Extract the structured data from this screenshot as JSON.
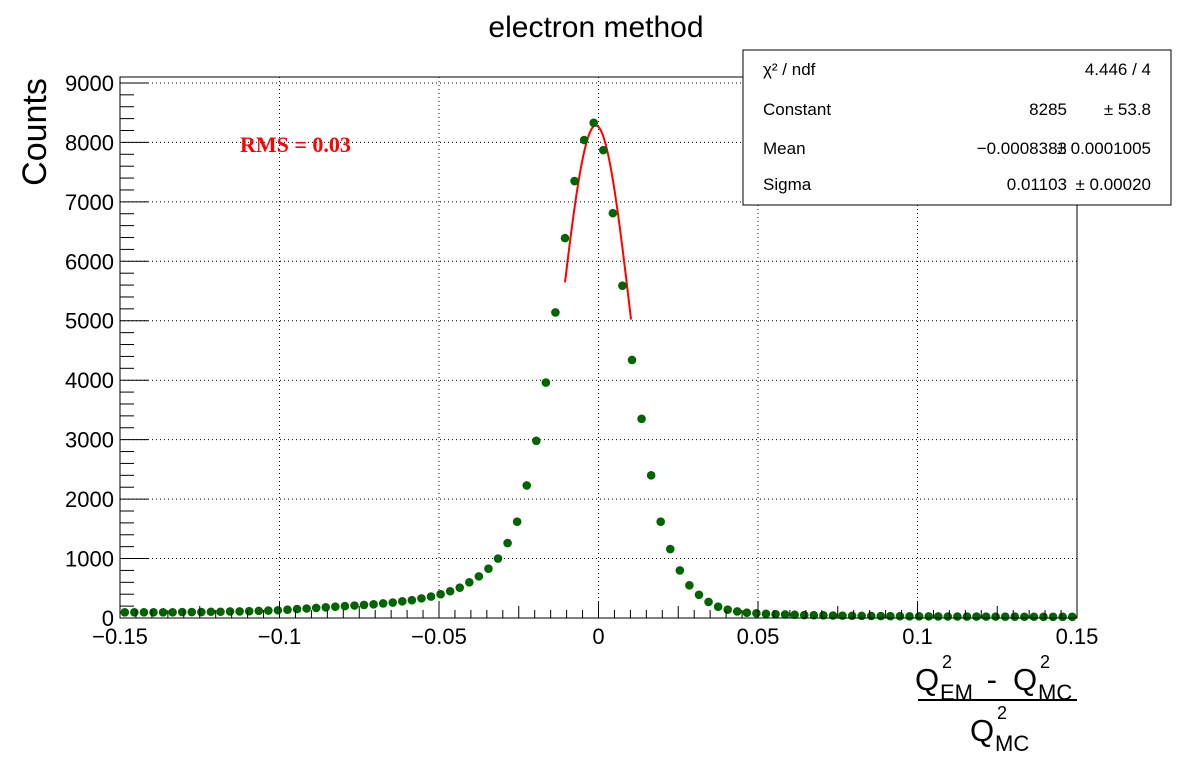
{
  "chart_data": {
    "type": "scatter",
    "title": "electron method",
    "ylabel": "Counts",
    "xlabel": {
      "numerator": {
        "a": "Q",
        "a_sup": "2",
        "a_sub": "EM",
        "op": " - ",
        "b": "Q",
        "b_sup": "2",
        "b_sub": "MC"
      },
      "denominator": {
        "a": "Q",
        "a_sup": "2",
        "a_sub": "MC"
      }
    },
    "xlim": [
      -0.15,
      0.15
    ],
    "ylim": [
      0,
      9100
    ],
    "x_ticks": [
      "−0.15",
      "−0.1",
      "−0.05",
      "0",
      "0.05",
      "0.1",
      "0.15"
    ],
    "x_tick_values": [
      -0.15,
      -0.1,
      -0.05,
      0,
      0.05,
      0.1,
      0.15
    ],
    "y_ticks": [
      "0",
      "1000",
      "2000",
      "3000",
      "4000",
      "5000",
      "6000",
      "7000",
      "8000",
      "9000"
    ],
    "y_tick_values": [
      0,
      1000,
      2000,
      3000,
      4000,
      5000,
      6000,
      7000,
      8000,
      9000
    ],
    "grid": true,
    "marker_color": "#006400",
    "fit_color": "#ff0000",
    "points": {
      "x": [
        -0.1485,
        -0.1455,
        -0.1425,
        -0.1395,
        -0.1365,
        -0.1335,
        -0.1305,
        -0.1275,
        -0.1245,
        -0.1215,
        -0.1185,
        -0.1155,
        -0.1125,
        -0.1095,
        -0.1065,
        -0.1035,
        -0.1005,
        -0.0975,
        -0.0945,
        -0.0915,
        -0.0885,
        -0.0855,
        -0.0825,
        -0.0795,
        -0.0765,
        -0.0735,
        -0.0705,
        -0.0675,
        -0.0645,
        -0.0615,
        -0.0585,
        -0.0555,
        -0.0525,
        -0.0495,
        -0.0465,
        -0.0435,
        -0.0405,
        -0.0375,
        -0.0345,
        -0.0315,
        -0.0285,
        -0.0255,
        -0.0225,
        -0.0195,
        -0.0165,
        -0.0135,
        -0.0105,
        -0.0075,
        -0.0045,
        -0.0015,
        0.0015,
        0.0045,
        0.0075,
        0.0105,
        0.0135,
        0.0165,
        0.0195,
        0.0225,
        0.0255,
        0.0285,
        0.0315,
        0.0345,
        0.0375,
        0.0405,
        0.0435,
        0.0465,
        0.0495,
        0.0525,
        0.0555,
        0.0585,
        0.0615,
        0.0645,
        0.0675,
        0.0705,
        0.0735,
        0.0765,
        0.0795,
        0.0825,
        0.0855,
        0.0885,
        0.0915,
        0.0945,
        0.0975,
        0.1005,
        0.1035,
        0.1065,
        0.1095,
        0.1125,
        0.1155,
        0.1185,
        0.1215,
        0.1245,
        0.1275,
        0.1305,
        0.1335,
        0.1365,
        0.1395,
        0.1425,
        0.1455,
        0.1485
      ],
      "y": [
        95,
        95,
        95,
        95,
        95,
        95,
        100,
        100,
        100,
        105,
        105,
        110,
        110,
        115,
        120,
        125,
        130,
        140,
        150,
        160,
        170,
        180,
        190,
        200,
        210,
        220,
        230,
        245,
        260,
        280,
        300,
        330,
        360,
        400,
        450,
        510,
        600,
        700,
        830,
        1000,
        1260,
        1620,
        2230,
        2980,
        3960,
        5140,
        6390,
        7350,
        8040,
        8330,
        7870,
        6810,
        5590,
        4340,
        3350,
        2400,
        1620,
        1160,
        800,
        550,
        390,
        270,
        190,
        140,
        110,
        90,
        80,
        70,
        65,
        60,
        55,
        50,
        48,
        45,
        42,
        40,
        38,
        36,
        34,
        32,
        30,
        30,
        29,
        28,
        27,
        26,
        25,
        25,
        24,
        24,
        23,
        23,
        22,
        22,
        21,
        21,
        20,
        20,
        20,
        20
      ]
    },
    "fit": {
      "model": "gaus",
      "constant": 8285,
      "mean": -0.0008383,
      "sigma": 0.01103,
      "x_range": [
        -0.0105,
        0.0102
      ]
    },
    "annotation": "RMS = 0.03",
    "stats_box": [
      {
        "label": "χ² / ndf",
        "value": "4.446 / 4",
        "error": ""
      },
      {
        "label": "Constant",
        "value": "8285",
        "error": "± 53.8"
      },
      {
        "label": "Mean",
        "value": "−0.0008383",
        "error": "± 0.0001005"
      },
      {
        "label": "Sigma",
        "value": "0.01103",
        "error": "± 0.00020"
      }
    ]
  }
}
